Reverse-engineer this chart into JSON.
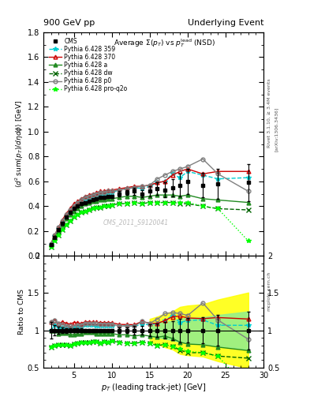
{
  "title_top": "900 GeV pp",
  "title_right": "Underlying Event",
  "plot_title": "Average $\\Sigma(p_T)$ vs $p_T^{\\mathrm{lead}}$ (NSD)",
  "watermark": "CMS_2011_S9120041",
  "xlabel": "$p_T$ (leading track-jet) [GeV]",
  "ylabel_main": "$\\langle d^2\\, \\mathrm{sum}(p_T)/d\\eta d\\phi \\rangle$ [GeV]",
  "ylabel_ratio": "Ratio to CMS",
  "right_label1": "Rivet 3.1.10, ≥ 3.4M events",
  "right_label2": "[arXiv:1306.3436]",
  "right_label3": "mcplots.cern.ch",
  "ylim_main": [
    0.0,
    1.8
  ],
  "ylim_ratio": [
    0.5,
    2.0
  ],
  "xlim": [
    1,
    30
  ],
  "x_data": [
    2.0,
    2.5,
    3.0,
    3.5,
    4.0,
    4.5,
    5.0,
    5.5,
    6.0,
    6.5,
    7.0,
    7.5,
    8.0,
    8.5,
    9.0,
    9.5,
    10.0,
    11.0,
    12.0,
    13.0,
    14.0,
    15.0,
    16.0,
    17.0,
    18.0,
    19.0,
    20.0,
    22.0,
    24.0,
    28.0
  ],
  "cms_y": [
    0.09,
    0.15,
    0.21,
    0.26,
    0.31,
    0.35,
    0.38,
    0.4,
    0.42,
    0.43,
    0.44,
    0.45,
    0.46,
    0.47,
    0.47,
    0.48,
    0.48,
    0.5,
    0.51,
    0.52,
    0.5,
    0.52,
    0.54,
    0.53,
    0.55,
    0.57,
    0.6,
    0.57,
    0.58,
    0.59
  ],
  "cms_yerr": [
    0.01,
    0.01,
    0.01,
    0.01,
    0.01,
    0.01,
    0.01,
    0.01,
    0.01,
    0.01,
    0.01,
    0.01,
    0.01,
    0.01,
    0.01,
    0.01,
    0.01,
    0.02,
    0.02,
    0.03,
    0.03,
    0.04,
    0.05,
    0.06,
    0.07,
    0.09,
    0.1,
    0.1,
    0.12,
    0.15
  ],
  "p359_y": [
    0.09,
    0.16,
    0.22,
    0.27,
    0.32,
    0.36,
    0.39,
    0.42,
    0.44,
    0.46,
    0.47,
    0.48,
    0.49,
    0.5,
    0.5,
    0.51,
    0.51,
    0.53,
    0.54,
    0.55,
    0.54,
    0.56,
    0.59,
    0.6,
    0.66,
    0.63,
    0.68,
    0.65,
    0.62,
    0.63
  ],
  "p370_y": [
    0.1,
    0.17,
    0.23,
    0.29,
    0.34,
    0.38,
    0.42,
    0.44,
    0.46,
    0.48,
    0.49,
    0.5,
    0.51,
    0.52,
    0.52,
    0.53,
    0.53,
    0.54,
    0.55,
    0.56,
    0.56,
    0.57,
    0.59,
    0.6,
    0.65,
    0.68,
    0.7,
    0.66,
    0.68,
    0.68
  ],
  "pa_y": [
    0.09,
    0.15,
    0.2,
    0.25,
    0.3,
    0.33,
    0.36,
    0.38,
    0.4,
    0.42,
    0.43,
    0.44,
    0.44,
    0.45,
    0.45,
    0.46,
    0.46,
    0.47,
    0.48,
    0.48,
    0.47,
    0.48,
    0.49,
    0.49,
    0.49,
    0.48,
    0.49,
    0.46,
    0.45,
    0.43
  ],
  "pdw_y": [
    0.07,
    0.12,
    0.17,
    0.21,
    0.25,
    0.28,
    0.31,
    0.33,
    0.35,
    0.36,
    0.37,
    0.38,
    0.39,
    0.39,
    0.4,
    0.4,
    0.41,
    0.42,
    0.42,
    0.43,
    0.42,
    0.43,
    0.43,
    0.43,
    0.43,
    0.42,
    0.42,
    0.4,
    0.38,
    0.37
  ],
  "pp0_y": [
    0.1,
    0.17,
    0.23,
    0.28,
    0.33,
    0.37,
    0.4,
    0.43,
    0.45,
    0.47,
    0.48,
    0.49,
    0.5,
    0.51,
    0.51,
    0.52,
    0.52,
    0.53,
    0.54,
    0.55,
    0.56,
    0.57,
    0.62,
    0.65,
    0.68,
    0.7,
    0.72,
    0.78,
    0.66,
    0.52
  ],
  "pproq2o_y": [
    0.07,
    0.12,
    0.17,
    0.21,
    0.25,
    0.28,
    0.31,
    0.33,
    0.35,
    0.36,
    0.37,
    0.38,
    0.39,
    0.39,
    0.4,
    0.4,
    0.41,
    0.42,
    0.42,
    0.43,
    0.42,
    0.43,
    0.43,
    0.43,
    0.43,
    0.43,
    0.43,
    0.4,
    0.38,
    0.12
  ],
  "colors": {
    "cms": "#000000",
    "p359": "#00ced1",
    "p370": "#cc0000",
    "pa": "#228B22",
    "pdw": "#006400",
    "pp0": "#808080",
    "pproq2o": "#00ff00"
  },
  "bg_color": "#ffffff"
}
